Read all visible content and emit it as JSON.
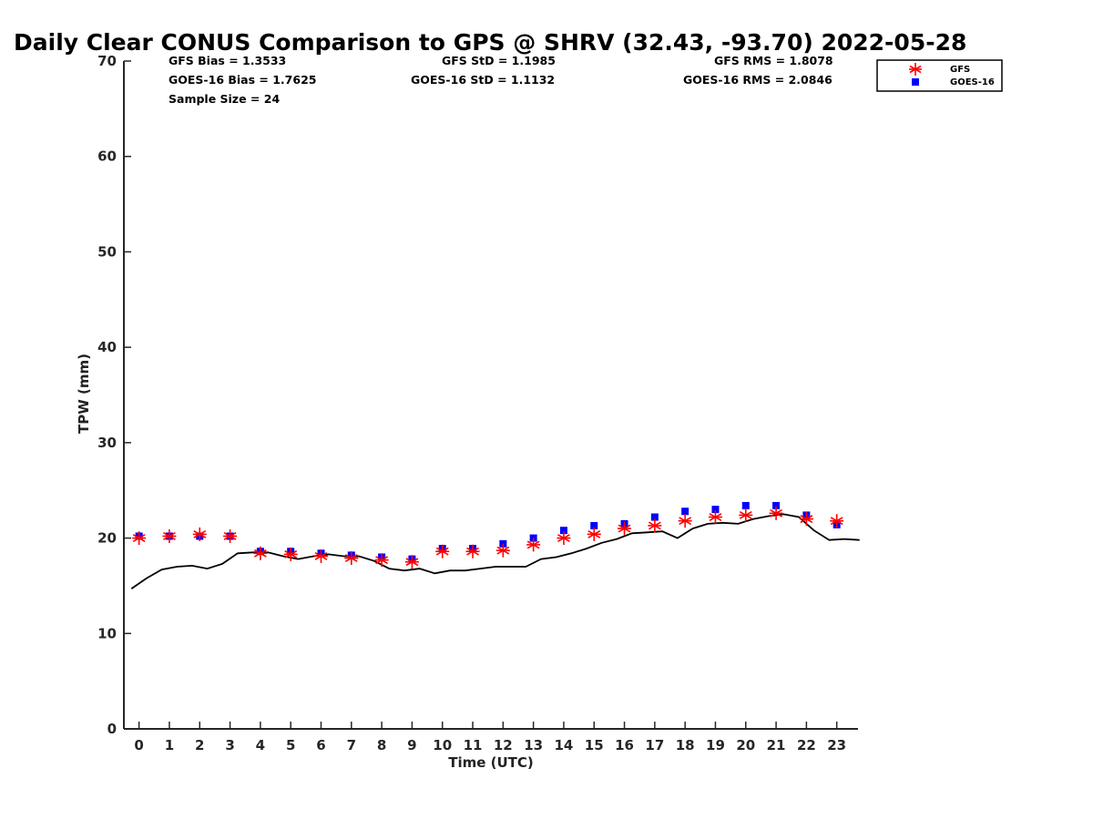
{
  "chart_data": {
    "type": "scatter",
    "title": "Daily Clear CONUS Comparison to GPS @ SHRV (32.43, -93.70) 2022-05-28",
    "xlabel": "Time (UTC)",
    "ylabel": "TPW (mm)",
    "xlim": [
      -0.5,
      23.7
    ],
    "ylim": [
      0,
      70
    ],
    "xticks": [
      0,
      1,
      2,
      3,
      4,
      5,
      6,
      7,
      8,
      9,
      10,
      11,
      12,
      13,
      14,
      15,
      16,
      17,
      18,
      19,
      20,
      21,
      22,
      23
    ],
    "yticks": [
      0,
      10,
      20,
      30,
      40,
      50,
      60,
      70
    ],
    "grid": false,
    "legend_position": "top-right, outside plot",
    "stats": {
      "gfs_bias": "GFS Bias = 1.3533",
      "goes_bias": "GOES-16 Bias = 1.7625",
      "sample_size": "Sample Size = 24",
      "gfs_std": "GFS StD = 1.1985",
      "goes_std": "GOES-16 StD = 1.1132",
      "gfs_rms": "GFS RMS = 1.8078",
      "goes_rms": "GOES-16 RMS = 2.0846"
    },
    "series": [
      {
        "name": "GFS",
        "marker": "asterisk",
        "color": "#ff0000",
        "x": [
          0,
          1,
          2,
          3,
          4,
          5,
          6,
          7,
          8,
          9,
          10,
          11,
          12,
          13,
          14,
          15,
          16,
          17,
          18,
          19,
          20,
          21,
          22,
          23
        ],
        "y": [
          20.0,
          20.2,
          20.4,
          20.2,
          18.4,
          18.3,
          18.1,
          17.9,
          17.7,
          17.5,
          18.6,
          18.6,
          18.7,
          19.3,
          20.0,
          20.4,
          21.0,
          21.3,
          21.8,
          22.2,
          22.4,
          22.6,
          22.0,
          21.8
        ]
      },
      {
        "name": "GOES-16",
        "marker": "square",
        "color": "#0000ff",
        "x": [
          0,
          1,
          2,
          3,
          4,
          5,
          6,
          7,
          8,
          9,
          10,
          11,
          12,
          13,
          14,
          15,
          16,
          17,
          18,
          19,
          20,
          21,
          22,
          23
        ],
        "y": [
          20.2,
          20.2,
          20.2,
          20.2,
          18.6,
          18.6,
          18.4,
          18.2,
          18.0,
          17.8,
          18.9,
          18.9,
          19.4,
          20.0,
          20.8,
          21.3,
          21.5,
          22.2,
          22.8,
          23.0,
          23.4,
          23.4,
          22.4,
          21.4
        ]
      },
      {
        "name": "GPS",
        "marker": "line",
        "color": "#000000",
        "x": [
          -0.25,
          0.25,
          0.75,
          1.25,
          1.75,
          2.25,
          2.75,
          3.25,
          3.75,
          4.25,
          4.75,
          5.25,
          5.75,
          6.25,
          6.75,
          7.25,
          7.75,
          8.25,
          8.75,
          9.25,
          9.75,
          10.25,
          10.75,
          11.25,
          11.75,
          12.25,
          12.75,
          13.25,
          13.75,
          14.25,
          14.75,
          15.25,
          15.75,
          16.25,
          16.75,
          17.25,
          17.75,
          18.25,
          18.75,
          19.25,
          19.75,
          20.25,
          20.75,
          21.25,
          21.75,
          22.25,
          22.75,
          23.25,
          23.75
        ],
        "y": [
          14.7,
          15.8,
          16.7,
          17.0,
          17.1,
          16.8,
          17.3,
          18.4,
          18.5,
          18.5,
          18.1,
          17.8,
          18.1,
          18.3,
          18.1,
          18.1,
          17.6,
          16.8,
          16.6,
          16.8,
          16.3,
          16.6,
          16.6,
          16.8,
          17.0,
          17.0,
          17.0,
          17.8,
          18.0,
          18.4,
          18.9,
          19.5,
          19.9,
          20.5,
          20.6,
          20.7,
          20.0,
          21.0,
          21.5,
          21.6,
          21.5,
          22.0,
          22.3,
          22.5,
          22.2,
          20.8,
          19.8,
          19.9,
          19.8
        ]
      }
    ]
  }
}
